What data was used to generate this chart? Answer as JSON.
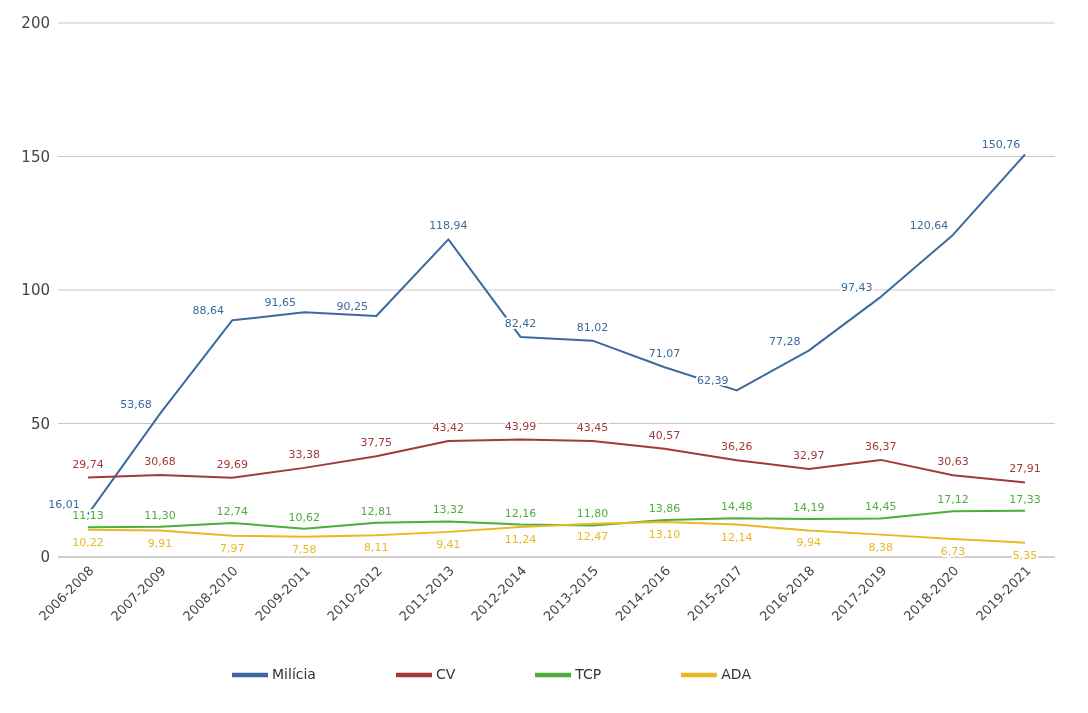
{
  "chart_data": {
    "type": "line",
    "categories": [
      "2006-2008",
      "2007-2009",
      "2008-2010",
      "2009-2011",
      "2010-2012",
      "2011-2013",
      "2012-2014",
      "2013-2015",
      "2014-2016",
      "2015-2017",
      "2016-2018",
      "2017-2019",
      "2018-2020",
      "2019-2021"
    ],
    "series": [
      {
        "name": "Milícia",
        "color": "#3d6a9e",
        "values": [
          16.01,
          53.68,
          88.64,
          91.65,
          90.25,
          118.94,
          82.42,
          81.02,
          71.07,
          62.39,
          77.28,
          97.43,
          120.64,
          150.76
        ],
        "value_labels": [
          "16,01",
          "53,68",
          "88,64",
          "91,65",
          "90,25",
          "118,94",
          "82,42",
          "81,02",
          "71,07",
          "62,39",
          "77,28",
          "97,43",
          "120,64",
          "150,76"
        ]
      },
      {
        "name": "CV",
        "color": "#a23a3a",
        "values": [
          29.74,
          30.68,
          29.69,
          33.38,
          37.75,
          43.42,
          43.99,
          43.45,
          40.57,
          36.26,
          32.97,
          36.37,
          30.63,
          27.91
        ],
        "value_labels": [
          "29,74",
          "30,68",
          "29,69",
          "33,38",
          "37,75",
          "43,42",
          "43,99",
          "43,45",
          "40,57",
          "36,26",
          "32,97",
          "36,37",
          "30,63",
          "27,91"
        ]
      },
      {
        "name": "TCP",
        "color": "#4caf3c",
        "values": [
          11.13,
          11.3,
          12.74,
          10.62,
          12.81,
          13.32,
          12.16,
          11.8,
          13.86,
          14.48,
          14.19,
          14.45,
          17.12,
          17.33
        ],
        "value_labels": [
          "11,13",
          "11,30",
          "12,74",
          "10,62",
          "12,81",
          "13,32",
          "12,16",
          "11,80",
          "13,86",
          "14,48",
          "14,19",
          "14,45",
          "17,12",
          "17,33"
        ]
      },
      {
        "name": "ADA",
        "color": "#e8b923",
        "values": [
          10.22,
          9.91,
          7.97,
          7.58,
          8.11,
          9.41,
          11.24,
          12.47,
          13.1,
          12.14,
          9.94,
          8.38,
          6.73,
          5.35
        ],
        "value_labels": [
          "10,22",
          "9,91",
          "7,97",
          "7,58",
          "8,11",
          "9,41",
          "11,24",
          "12,47",
          "13,10",
          "12,14",
          "9,94",
          "8,38",
          "6,73",
          "5,35"
        ]
      }
    ],
    "ylim": [
      0,
      200
    ],
    "yticks": [
      0,
      50,
      100,
      150,
      200
    ],
    "grid": "y",
    "legend": "bottom",
    "marker": "none",
    "line_style": "solid"
  }
}
